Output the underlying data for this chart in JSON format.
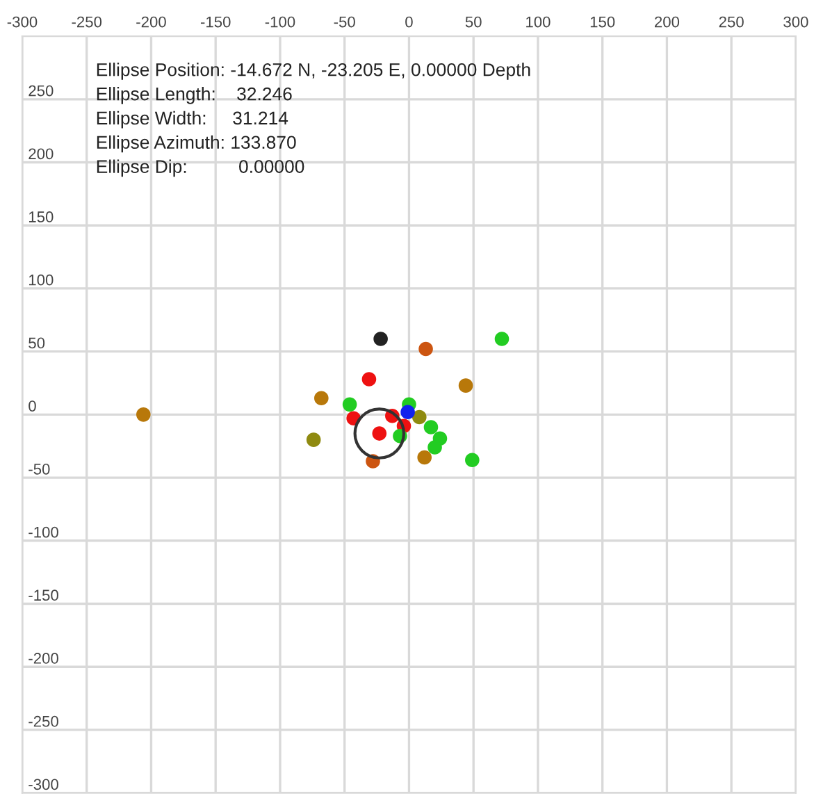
{
  "chart_data": {
    "type": "scatter",
    "annotations": [
      "Ellipse Position: -14.672 N, -23.205 E, 0.00000 Depth",
      "Ellipse Length:    32.246",
      "Ellipse Width:     31.214",
      "Ellipse Azimuth: 133.870",
      "Ellipse Dip:          0.00000"
    ],
    "xlim": [
      -300,
      300
    ],
    "xticks": [
      -300,
      -250,
      -200,
      -150,
      -100,
      -50,
      0,
      50,
      100,
      150,
      200,
      250,
      300
    ],
    "ylim": [
      -300,
      300
    ],
    "yticks": [
      -300,
      -250,
      -200,
      -150,
      -100,
      -50,
      0,
      50,
      100,
      150,
      200,
      250
    ],
    "grid": true,
    "marker": "circle",
    "series": [
      {
        "color": "#ee1111",
        "x": [
          -31,
          -43,
          -13,
          -4,
          -23
        ],
        "values": [
          28,
          -3,
          -1,
          -9,
          -15
        ]
      },
      {
        "color": "#cc5511",
        "x": [
          13,
          -28
        ],
        "values": [
          52,
          -37
        ]
      },
      {
        "color": "#b8780a",
        "x": [
          44,
          -68,
          12,
          -206
        ],
        "values": [
          23,
          13,
          -34,
          0
        ]
      },
      {
        "color": "#8f8a10",
        "x": [
          8,
          -74
        ],
        "values": [
          -2,
          -20
        ]
      },
      {
        "color": "#22cc22",
        "x": [
          72,
          -46,
          0,
          17,
          24,
          20,
          49,
          -7
        ],
        "values": [
          60,
          8,
          8,
          -10,
          -19,
          -26,
          -36,
          -17
        ]
      },
      {
        "color": "#1122ee",
        "x": [
          -1
        ],
        "values": [
          2
        ]
      },
      {
        "color": "#222222",
        "x": [
          -22
        ],
        "values": [
          60
        ]
      },
      {
        "color": "#333333",
        "x": [
          -23
        ],
        "values": [
          -15
        ],
        "line_style": "solid"
      }
    ]
  }
}
